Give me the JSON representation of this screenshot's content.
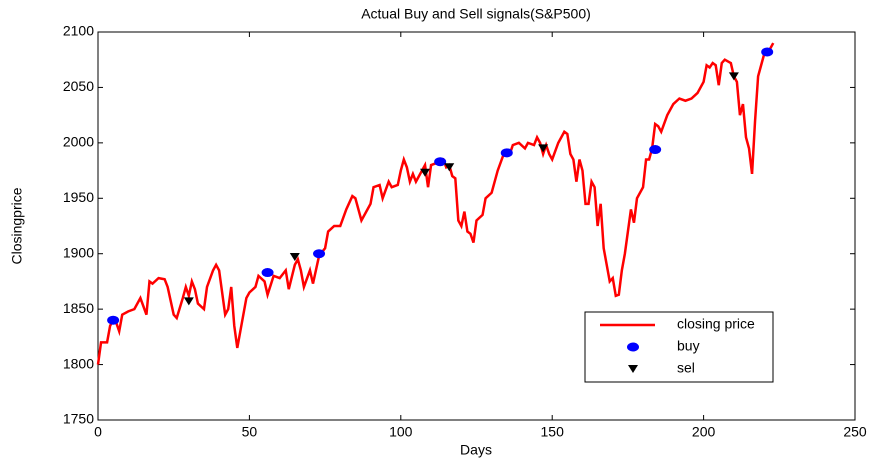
{
  "chart_data": {
    "type": "line",
    "title": "Actual Buy and Sell signals(S&P500)",
    "x_label": "Days",
    "y_label": "Closingprice",
    "xlim": [
      0,
      250
    ],
    "xticks": [
      0,
      50,
      100,
      150,
      200,
      250
    ],
    "ylim": [
      1750,
      2100
    ],
    "yticks": [
      1750,
      1800,
      1850,
      1900,
      1950,
      2000,
      2050,
      2100
    ],
    "grid": false,
    "legend": "lower right",
    "series": [
      {
        "name": "closing price",
        "color": "#ff0000",
        "mode": "line",
        "x": [
          0,
          1,
          3,
          4,
          5,
          6,
          7,
          8,
          10,
          12,
          14,
          16,
          17,
          18,
          20,
          22,
          23,
          25,
          26,
          28,
          29,
          30,
          31,
          32,
          33,
          35,
          36,
          38,
          39,
          40,
          42,
          43,
          44,
          45,
          46,
          47,
          49,
          50,
          52,
          53,
          55,
          56,
          58,
          60,
          62,
          63,
          65,
          66,
          67,
          68,
          70,
          71,
          73,
          75,
          76,
          78,
          80,
          82,
          84,
          85,
          87,
          89,
          90,
          91,
          93,
          94,
          96,
          97,
          99,
          100,
          101,
          102,
          103,
          104,
          105,
          106,
          107,
          108,
          109,
          110,
          112,
          114,
          115,
          116,
          117,
          118,
          119,
          120,
          121,
          122,
          123,
          124,
          125,
          127,
          128,
          130,
          132,
          134,
          136,
          137,
          139,
          141,
          142,
          144,
          145,
          146,
          147,
          148,
          149,
          150,
          152,
          154,
          155,
          156,
          157,
          158,
          159,
          160,
          161,
          162,
          163,
          164,
          165,
          166,
          167,
          168,
          169,
          170,
          171,
          172,
          173,
          174,
          175,
          176,
          177,
          178,
          180,
          181,
          182,
          183,
          184,
          185,
          186,
          188,
          190,
          192,
          194,
          196,
          198,
          200,
          201,
          202,
          203,
          204,
          205,
          206,
          207,
          209,
          210,
          211,
          212,
          213,
          214,
          215,
          216,
          217,
          218,
          219,
          220,
          222,
          223
        ],
        "values": [
          1800,
          1820,
          1820,
          1835,
          1840,
          1838,
          1830,
          1845,
          1848,
          1850,
          1860,
          1845,
          1875,
          1873,
          1878,
          1877,
          1870,
          1845,
          1842,
          1860,
          1870,
          1862,
          1875,
          1868,
          1855,
          1850,
          1870,
          1885,
          1890,
          1885,
          1845,
          1850,
          1870,
          1835,
          1815,
          1830,
          1860,
          1865,
          1870,
          1880,
          1875,
          1863,
          1880,
          1878,
          1885,
          1868,
          1890,
          1895,
          1885,
          1870,
          1885,
          1873,
          1898,
          1905,
          1920,
          1925,
          1925,
          1940,
          1952,
          1950,
          1930,
          1940,
          1945,
          1960,
          1962,
          1950,
          1965,
          1960,
          1962,
          1975,
          1985,
          1978,
          1965,
          1972,
          1965,
          1970,
          1975,
          1980,
          1960,
          1980,
          1982,
          1985,
          1978,
          1980,
          1970,
          1968,
          1930,
          1925,
          1938,
          1920,
          1918,
          1910,
          1930,
          1935,
          1950,
          1955,
          1975,
          1990,
          1990,
          1998,
          2000,
          1995,
          2000,
          1998,
          2005,
          2000,
          1990,
          1998,
          1990,
          1985,
          2000,
          2010,
          2008,
          1990,
          1985,
          1965,
          1985,
          1975,
          1945,
          1945,
          1965,
          1960,
          1925,
          1945,
          1905,
          1890,
          1875,
          1878,
          1862,
          1863,
          1885,
          1900,
          1920,
          1940,
          1928,
          1950,
          1960,
          1985,
          1985,
          1995,
          2017,
          2015,
          2010,
          2025,
          2035,
          2040,
          2038,
          2040,
          2045,
          2055,
          2070,
          2068,
          2072,
          2070,
          2052,
          2072,
          2075,
          2072,
          2060,
          2055,
          2025,
          2035,
          2005,
          1995,
          1972,
          2020,
          2060,
          2070,
          2080,
          2085,
          2090
        ]
      },
      {
        "name": "buy",
        "color": "#0000ff",
        "mode": "ellipse",
        "x": [
          5,
          56,
          73,
          113,
          135,
          184,
          221
        ],
        "values": [
          1840,
          1883,
          1900,
          1983,
          1991,
          1994,
          2082
        ]
      },
      {
        "name": "sel",
        "color": "#000000",
        "mode": "triangle",
        "x": [
          30,
          65,
          108,
          116,
          147,
          210
        ],
        "values": [
          1857,
          1897,
          1973,
          1978,
          1995,
          2060
        ]
      }
    ]
  }
}
